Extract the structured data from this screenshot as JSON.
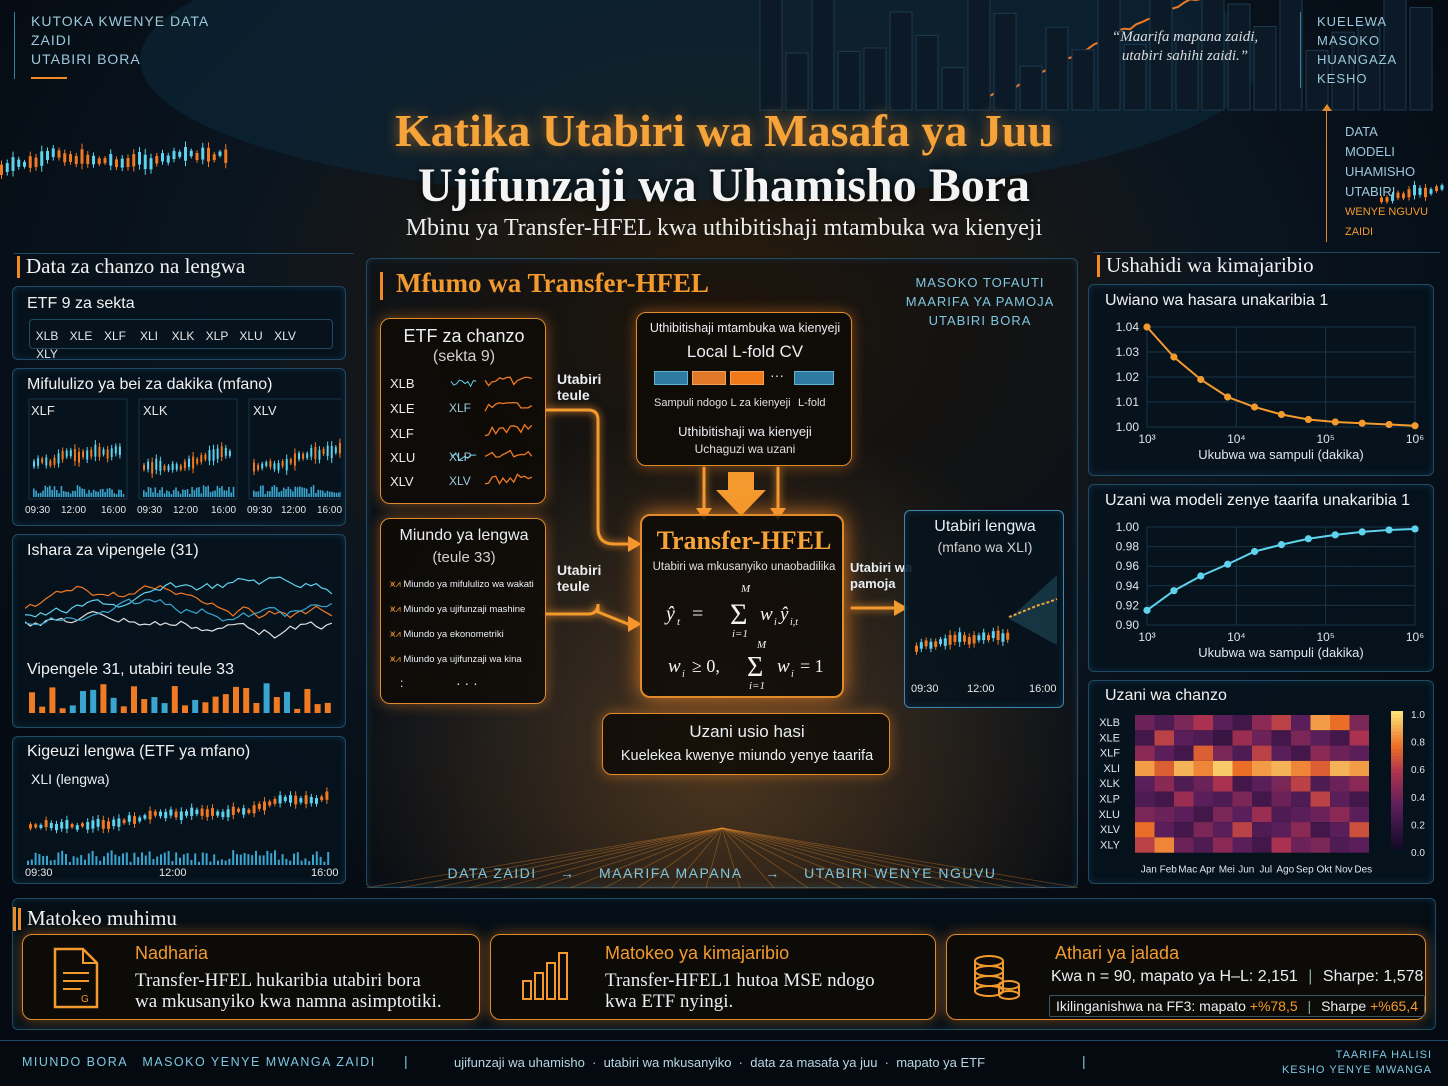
{
  "top_left": [
    "KUTOKA KWENYE DATA",
    "ZAIDI",
    "UTABIRI BORA"
  ],
  "top_quote": [
    "“Maarifa mapana zaidi,",
    "utabiri sahihi zaidi.”"
  ],
  "top_right": [
    "KUELEWA MASOKO",
    "HUANGAZA",
    "KESHO"
  ],
  "right_arrow_labels": [
    "DATA",
    "MODELI",
    "UHAMISHO",
    "UTABIRI",
    "WENYE NGUVU ZAIDI"
  ],
  "title_line1": "Katika Utabiri wa Masafa ya Juu",
  "title_line2": "Ujifunzaji wa Uhamisho Bora",
  "subtitle": "Mbinu ya Transfer-HFEL kwa uthibitishaji mtambuka wa kienyeji",
  "left": {
    "heading": "Data za chanzo na lengwa",
    "etf_title": "ETF 9 za sekta",
    "etfs": [
      "XLB",
      "XLE",
      "XLF",
      "XLI",
      "XLK",
      "XLP",
      "XLU",
      "XLV",
      "XLY"
    ],
    "streams_title": "Mifululizo ya bei za dakika (mfano)",
    "streams": [
      "XLF",
      "XLK",
      "XLV"
    ],
    "time_ticks": [
      "09:30",
      "12:00",
      "16:00"
    ],
    "features_title": "Ishara za vipengele (31)",
    "features_note": "Vipengele 31, utabiri teule 33",
    "target_title": "Kigeuzi lengwa (ETF ya mfano)",
    "target_label": "XLI (lengwa)"
  },
  "center": {
    "heading": "Mfumo wa Transfer-HFEL",
    "tagline": [
      "MASOKO TOFAUTI",
      "MAARIFA YA PAMOJA",
      "UTABIRI BORA"
    ],
    "source_box": {
      "title": "ETF za chanzo",
      "sub": "(sekta 9)",
      "rows": [
        "XLB",
        "XLE",
        "XLF",
        "XLU",
        "XLV"
      ],
      "mini": [
        "XLF",
        "XLP",
        "XLV"
      ]
    },
    "cv_box": {
      "title": "Uthibitishaji mtambuka wa kienyeji",
      "subtitle": "Local L-fold CV",
      "dots": "···",
      "caption_left": "Sampuli ndogo L za kienyeji",
      "caption_right": "L-fold",
      "line1": "Uthibitishaji wa kienyeji",
      "line2": "Uchaguzi wa uzani"
    },
    "arrow_label_top": [
      "Utabiri",
      "teule"
    ],
    "arrow_label_bottom": [
      "Utabiri",
      "teule"
    ],
    "models_box": {
      "title": "Miundo ya lengwa",
      "sub": "(teule 33)",
      "items": [
        "Miundo ya mifululizo wa wakati",
        "Miundo ya ujifunzaji mashine",
        "Miundo ya ekonometriki",
        "Miundo ya ujifunzaji wa kina"
      ],
      "ellipsis": "· · ·",
      "side_dot": ":"
    },
    "core": {
      "title": "Transfer-HFEL",
      "sub": "Utabiri wa mkusanyiko unaobadilika"
    },
    "pool_label": [
      "Utabiri wa",
      "pamoja"
    ],
    "forecast_box": {
      "title": "Utabiri lengwa",
      "sub": "(mfano wa XLI)",
      "ticks": [
        "09:30",
        "12:00",
        "16:00"
      ]
    },
    "weights_box": {
      "title": "Uzani usio hasi",
      "sub": "Kuelekea kwenye miundo yenye taarifa"
    },
    "bottom_flow": [
      "DATA ZAIDI",
      "→",
      "MAARIFA MAPANA",
      "→",
      "UTABIRI WENYE NGUVU"
    ]
  },
  "right": {
    "heading": "Ushahidi wa kimajaribio",
    "chart1_title": "Uwiano wa hasara unakaribia 1",
    "chart2_title": "Uzani wa modeli zenye taarifa unakaribia 1",
    "heatmap_title": "Uzani wa chanzo",
    "heatmap_rows": [
      "XLB",
      "XLE",
      "XLF",
      "XLI",
      "XLK",
      "XLP",
      "XLU",
      "XLV",
      "XLY"
    ],
    "heatmap_cols": [
      "Jan",
      "Feb",
      "Mac",
      "Apr",
      "Mei",
      "Jun",
      "Jul",
      "Ago",
      "Sep",
      "Okt",
      "Nov",
      "Des"
    ],
    "heatmap_scale": [
      "1.0",
      "0.8",
      "0.6",
      "0.4",
      "0.2",
      "0.0"
    ]
  },
  "chart_data": [
    {
      "type": "line",
      "title": "Uwiano wa hasara unakaribia 1",
      "xlabel": "Ukubwa wa sampuli (dakika)",
      "x_scale": "log",
      "x_ticks": [
        "10³",
        "10⁴",
        "10⁵",
        "10⁶"
      ],
      "x": [
        1000,
        2000,
        4000,
        8000,
        16000,
        32000,
        64000,
        128000,
        256000,
        512000,
        1000000
      ],
      "y": [
        1.04,
        1.028,
        1.019,
        1.012,
        1.008,
        1.005,
        1.003,
        1.002,
        1.0015,
        1.001,
        1.0005
      ],
      "ylim": [
        1.0,
        1.04
      ],
      "y_ticks": [
        "1.04",
        "1.03",
        "1.02",
        "1.01",
        "1.00"
      ],
      "grid": true
    },
    {
      "type": "line",
      "title": "Uzani wa modeli zenye taarifa unakaribia 1",
      "xlabel": "Ukubwa wa sampuli (dakika)",
      "x_scale": "log",
      "x_ticks": [
        "10³",
        "10⁴",
        "10⁵",
        "10⁶"
      ],
      "x": [
        1000,
        2000,
        4000,
        8000,
        16000,
        32000,
        64000,
        128000,
        256000,
        512000,
        1000000
      ],
      "y": [
        0.915,
        0.935,
        0.95,
        0.962,
        0.975,
        0.982,
        0.988,
        0.992,
        0.995,
        0.997,
        0.998
      ],
      "ylim": [
        0.9,
        1.0
      ],
      "y_ticks": [
        "1.00",
        "0.98",
        "0.96",
        "0.94",
        "0.92",
        "0.90"
      ],
      "grid": true
    },
    {
      "type": "heatmap",
      "title": "Uzani wa chanzo",
      "rows": [
        "XLB",
        "XLE",
        "XLF",
        "XLI",
        "XLK",
        "XLP",
        "XLU",
        "XLV",
        "XLY"
      ],
      "cols": [
        "Jan",
        "Feb",
        "Mac",
        "Apr",
        "Mei",
        "Jun",
        "Jul",
        "Ago",
        "Sep",
        "Okt",
        "Nov",
        "Des"
      ],
      "zlim": [
        0.0,
        1.0
      ],
      "values": [
        [
          0.35,
          0.25,
          0.4,
          0.55,
          0.3,
          0.2,
          0.45,
          0.6,
          0.3,
          0.85,
          0.75,
          0.4
        ],
        [
          0.2,
          0.6,
          0.3,
          0.25,
          0.15,
          0.5,
          0.35,
          0.2,
          0.4,
          0.3,
          0.2,
          0.55
        ],
        [
          0.45,
          0.3,
          0.2,
          0.7,
          0.4,
          0.25,
          0.6,
          0.3,
          0.2,
          0.45,
          0.35,
          0.3
        ],
        [
          0.85,
          0.7,
          0.9,
          0.8,
          0.95,
          0.75,
          0.85,
          0.9,
          0.8,
          0.7,
          0.9,
          0.85
        ],
        [
          0.3,
          0.45,
          0.25,
          0.35,
          0.55,
          0.2,
          0.3,
          0.4,
          0.6,
          0.25,
          0.35,
          0.45
        ],
        [
          0.25,
          0.2,
          0.5,
          0.3,
          0.25,
          0.4,
          0.2,
          0.35,
          0.25,
          0.6,
          0.3,
          0.2
        ],
        [
          0.4,
          0.35,
          0.3,
          0.2,
          0.4,
          0.3,
          0.5,
          0.25,
          0.3,
          0.35,
          0.45,
          0.3
        ],
        [
          0.75,
          0.3,
          0.2,
          0.4,
          0.3,
          0.6,
          0.25,
          0.3,
          0.45,
          0.2,
          0.3,
          0.65
        ],
        [
          0.6,
          0.8,
          0.35,
          0.25,
          0.45,
          0.3,
          0.2,
          0.55,
          0.35,
          0.4,
          0.25,
          0.3
        ]
      ]
    }
  ],
  "bottom": {
    "heading": "Matokeo muhimu",
    "cards": [
      {
        "title": "Nadharia",
        "text1": "Transfer-HFEL hukaribia utabiri bora",
        "text2": "wa mkusanyiko kwa namna asimptotiki."
      },
      {
        "title": "Matokeo ya kimajaribio",
        "text1": "Transfer-HFEL1 hutoa MSE ndogo",
        "text2": "kwa ETF nyingi."
      },
      {
        "title": "Athari ya jalada",
        "text1": "Kwa n = 90, mapato ya H–L: 2,151",
        "text1b": "Sharpe: 1,578",
        "text2_prefix": "Ikilinganishwa na FF3: mapato ",
        "text2_val": "+%78,5",
        "text2b_prefix": "Sharpe ",
        "text2b_val": "+%65,4"
      }
    ]
  },
  "footer": {
    "left": "MIUNDO BORA   MASOKO YENYE MWANGA ZAIDI",
    "sep": "|",
    "middle": "ujifunzaji wa uhamisho  ·  utabiri wa mkusanyiko  ·  data za masafa ya juu  ·  mapato ya ETF",
    "sep2": "|",
    "right1": "TAARIFA HALISI",
    "right2": "KESHO YENYE MWANGA"
  },
  "colors": {
    "accent": "#f08a24",
    "cyan": "#5fd3ee",
    "panel_border": "#1f4a63"
  }
}
